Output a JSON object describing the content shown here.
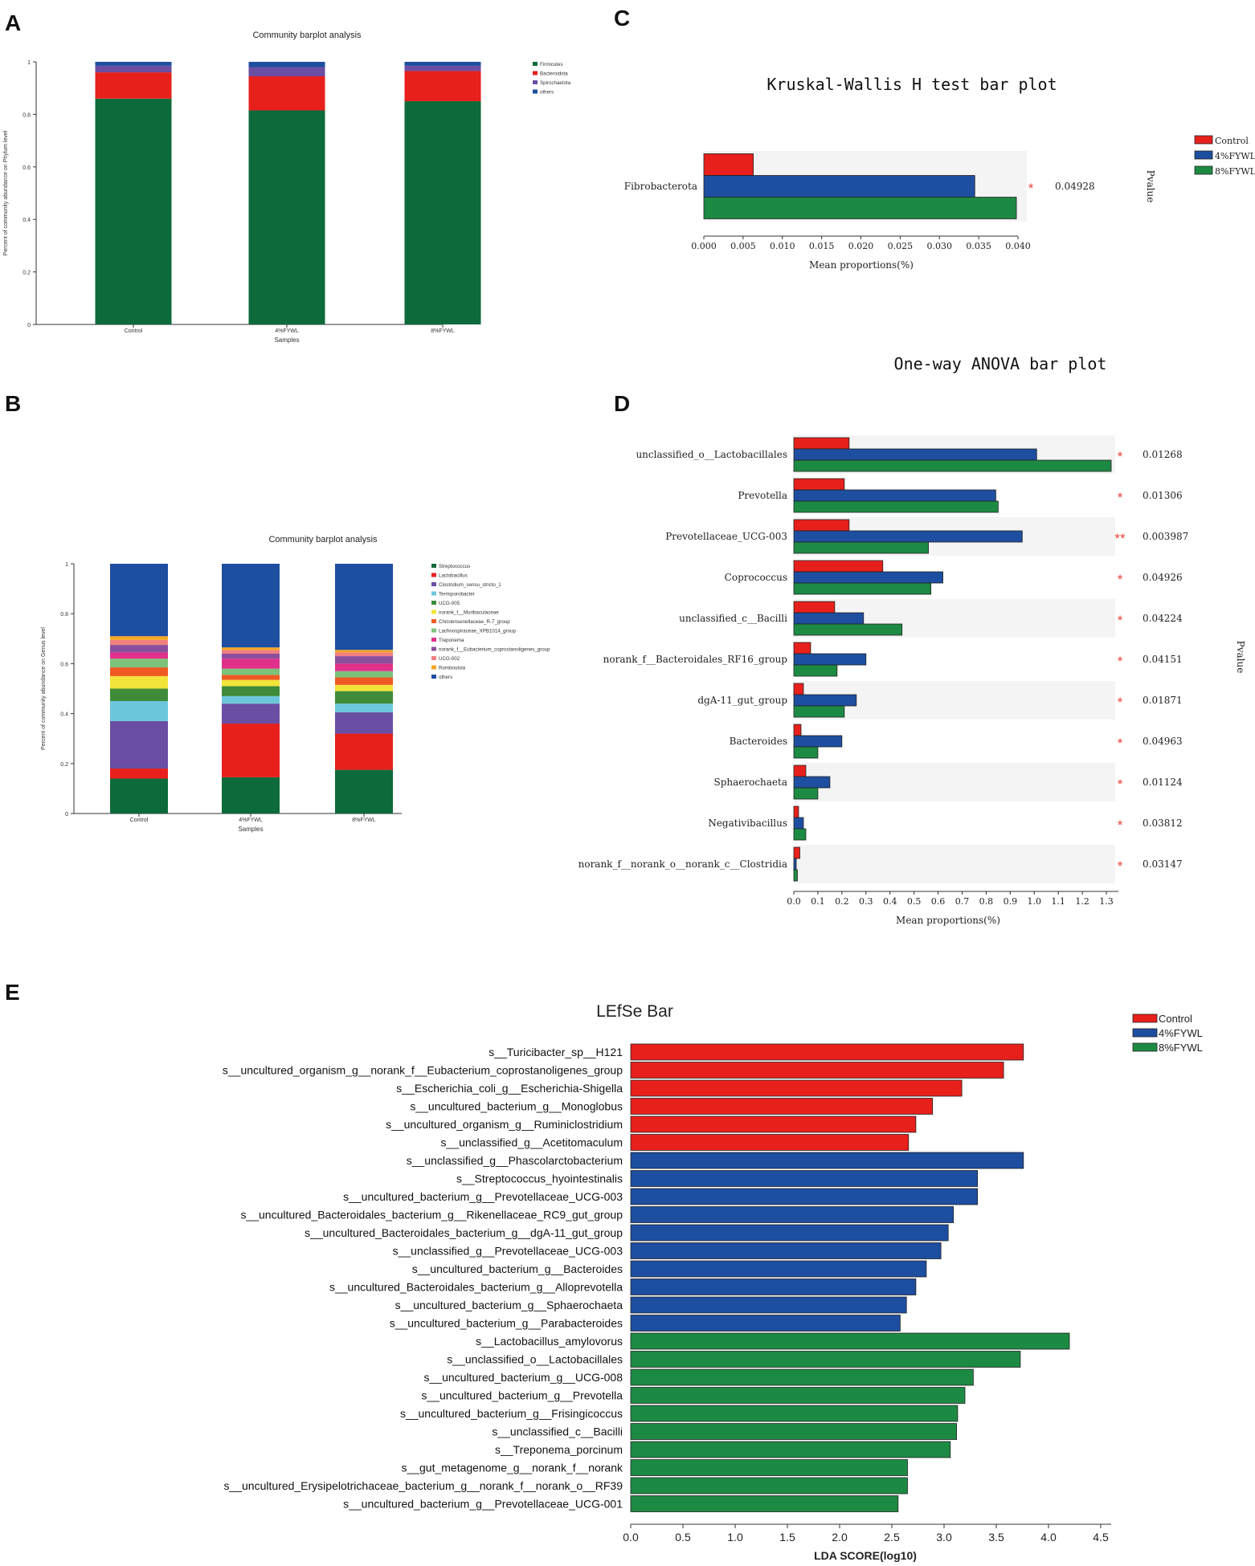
{
  "panels": {
    "A": "A",
    "B": "B",
    "C": "C",
    "D": "D",
    "E": "E"
  },
  "chart_data": [
    {
      "id": "A",
      "type": "bar",
      "stacked": true,
      "title": "Community barplot analysis",
      "xlabel": "Samples",
      "ylabel": "Percent of community abundance on Phylum level",
      "ylim": [
        0,
        1
      ],
      "yticks": [
        "0",
        "0.2",
        "0.4",
        "0.6",
        "0.8",
        "1"
      ],
      "categories": [
        "Control",
        "4%FYWL",
        "8%FYWL"
      ],
      "legend_position": "top-right",
      "series": [
        {
          "name": "Firmicutes",
          "color": "#0d6a3a",
          "values": [
            0.86,
            0.815,
            0.85
          ]
        },
        {
          "name": "Bacteroidota",
          "color": "#e8201c",
          "values": [
            0.1,
            0.13,
            0.115
          ]
        },
        {
          "name": "Spirochaetota",
          "color": "#6a4ea3",
          "values": [
            0.025,
            0.035,
            0.02
          ]
        },
        {
          "name": "others",
          "color": "#1d4ea0",
          "values": [
            0.015,
            0.02,
            0.015
          ]
        }
      ]
    },
    {
      "id": "B",
      "type": "bar",
      "stacked": true,
      "title": "Community barplot analysis",
      "xlabel": "Samples",
      "ylabel": "Percent of community abundance on Genus level",
      "ylim": [
        0,
        1
      ],
      "yticks": [
        "0",
        "0.2",
        "0.4",
        "0.6",
        "0.8",
        "1"
      ],
      "categories": [
        "Control",
        "4%FYWL",
        "8%FYWL"
      ],
      "legend_position": "top-right",
      "series": [
        {
          "name": "Streptococcus",
          "color": "#0d6a3a",
          "values": [
            0.14,
            0.145,
            0.175
          ]
        },
        {
          "name": "Lactobacillus",
          "color": "#e8201c",
          "values": [
            0.04,
            0.215,
            0.145
          ]
        },
        {
          "name": "Clostridium_sensu_stricto_1",
          "color": "#6a4ea3",
          "values": [
            0.19,
            0.08,
            0.085
          ]
        },
        {
          "name": "Terrisporobacter",
          "color": "#6cc7dc",
          "values": [
            0.08,
            0.03,
            0.035
          ]
        },
        {
          "name": "UCG-005",
          "color": "#3f8b3a",
          "values": [
            0.05,
            0.04,
            0.05
          ]
        },
        {
          "name": "norank_f__Muribaculaceae",
          "color": "#f2e43a",
          "values": [
            0.05,
            0.025,
            0.025
          ]
        },
        {
          "name": "Christensenellaceae_R-7_group",
          "color": "#ef5a24",
          "values": [
            0.035,
            0.02,
            0.03
          ]
        },
        {
          "name": "Lachnospiraceae_XPB1014_group",
          "color": "#7cc27a",
          "values": [
            0.035,
            0.025,
            0.025
          ]
        },
        {
          "name": "Treponema",
          "color": "#e0308a",
          "values": [
            0.025,
            0.04,
            0.03
          ]
        },
        {
          "name": "norank_f__Eubacterium_coprostanoligenes_group",
          "color": "#8b4f9e",
          "values": [
            0.03,
            0.02,
            0.03
          ]
        },
        {
          "name": "UCG-002",
          "color": "#f08080",
          "values": [
            0.02,
            0.015,
            0.015
          ]
        },
        {
          "name": "Romboutsia",
          "color": "#f5a623",
          "values": [
            0.015,
            0.01,
            0.01
          ]
        },
        {
          "name": "others",
          "color": "#1d4ea0",
          "values": [
            0.29,
            0.335,
            0.345
          ]
        }
      ]
    },
    {
      "id": "C",
      "type": "bar",
      "orientation": "horizontal",
      "title": "Kruskal-Wallis H test bar plot",
      "xlabel": "Mean proportions(%)",
      "ylabel": "",
      "pvalue_label": "Pvalue",
      "xlim": [
        0,
        0.04
      ],
      "xticks": [
        "0.000",
        "0.005",
        "0.010",
        "0.015",
        "0.020",
        "0.025",
        "0.030",
        "0.035",
        "0.040"
      ],
      "legend_position": "top-right",
      "series_names": [
        "Control",
        "4%FYWL",
        "8%FYWL"
      ],
      "colors": [
        "#e8201c",
        "#1d4ea0",
        "#1d8a43"
      ],
      "categories": [
        "Fibrobacterota"
      ],
      "values": [
        [
          0.0063,
          0.0345,
          0.0398
        ]
      ],
      "significance": [
        "*"
      ],
      "pvalues": [
        "0.04928"
      ]
    },
    {
      "id": "D",
      "type": "bar",
      "orientation": "horizontal",
      "title": "One-way ANOVA bar plot",
      "xlabel": "Mean proportions(%)",
      "ylabel": "",
      "pvalue_label": "Pvalue",
      "xlim": [
        0,
        1.35
      ],
      "xticks": [
        "0.0",
        "0.1",
        "0.2",
        "0.3",
        "0.4",
        "0.5",
        "0.6",
        "0.7",
        "0.8",
        "0.9",
        "1.0",
        "1.1",
        "1.2",
        "1.3"
      ],
      "series_names": [
        "Control",
        "4%FYWL",
        "8%FYWL"
      ],
      "colors": [
        "#e8201c",
        "#1d4ea0",
        "#1d8a43"
      ],
      "categories": [
        "unclassified_o__Lactobacillales",
        "Prevotella",
        "Prevotellaceae_UCG-003",
        "Coprococcus",
        "unclassified_c__Bacilli",
        "norank_f__Bacteroidales_RF16_group",
        "dgA-11_gut_group",
        "Bacteroides",
        "Sphaerochaeta",
        "Negativibacillus",
        "norank_f__norank_o__norank_c__Clostridia"
      ],
      "values": [
        [
          0.23,
          1.01,
          1.32
        ],
        [
          0.21,
          0.84,
          0.85
        ],
        [
          0.23,
          0.95,
          0.56
        ],
        [
          0.37,
          0.62,
          0.57
        ],
        [
          0.17,
          0.29,
          0.45
        ],
        [
          0.07,
          0.3,
          0.18
        ],
        [
          0.04,
          0.26,
          0.21
        ],
        [
          0.03,
          0.2,
          0.1
        ],
        [
          0.05,
          0.15,
          0.1
        ],
        [
          0.02,
          0.04,
          0.05
        ],
        [
          0.025,
          0.01,
          0.015
        ]
      ],
      "significance": [
        "*",
        "*",
        "**",
        "*",
        "*",
        "*",
        "*",
        "*",
        "*",
        "*",
        "*"
      ],
      "pvalues": [
        "0.01268",
        "0.01306",
        "0.003987",
        "0.04926",
        "0.04224",
        "0.04151",
        "0.01871",
        "0.04963",
        "0.01124",
        "0.03812",
        "0.03147"
      ]
    },
    {
      "id": "E",
      "type": "bar",
      "orientation": "horizontal",
      "title": "LEfSe Bar",
      "xlabel": "LDA SCORE(log10)",
      "xlim": [
        0,
        4.6
      ],
      "xticks": [
        "0.0",
        "0.5",
        "1.0",
        "1.5",
        "2.0",
        "2.5",
        "3.0",
        "3.5",
        "4.0",
        "4.5"
      ],
      "legend_position": "top-right",
      "groups": [
        {
          "name": "Control",
          "color": "#e8201c"
        },
        {
          "name": "4%FYWL",
          "color": "#1d4ea0"
        },
        {
          "name": "8%FYWL",
          "color": "#1d8a43"
        }
      ],
      "bars": [
        {
          "label": "s__Turicibacter_sp__H121",
          "group": 0,
          "value": 3.76
        },
        {
          "label": "s__uncultured_organism_g__norank_f__Eubacterium_coprostanoligenes_group",
          "group": 0,
          "value": 3.57
        },
        {
          "label": "s__Escherichia_coli_g__Escherichia-Shigella",
          "group": 0,
          "value": 3.17
        },
        {
          "label": "s__uncultured_bacterium_g__Monoglobus",
          "group": 0,
          "value": 2.89
        },
        {
          "label": "s__uncultured_organism_g__Ruminiclostridium",
          "group": 0,
          "value": 2.73
        },
        {
          "label": "s__unclassified_g__Acetitomaculum",
          "group": 0,
          "value": 2.66
        },
        {
          "label": "s__unclassified_g__Phascolarctobacterium",
          "group": 1,
          "value": 3.76
        },
        {
          "label": "s__Streptococcus_hyointestinalis",
          "group": 1,
          "value": 3.32
        },
        {
          "label": "s__uncultured_bacterium_g__Prevotellaceae_UCG-003",
          "group": 1,
          "value": 3.32
        },
        {
          "label": "s__uncultured_Bacteroidales_bacterium_g__Rikenellaceae_RC9_gut_group",
          "group": 1,
          "value": 3.09
        },
        {
          "label": "s__uncultured_Bacteroidales_bacterium_g__dgA-11_gut_group",
          "group": 1,
          "value": 3.04
        },
        {
          "label": "s__unclassified_g__Prevotellaceae_UCG-003",
          "group": 1,
          "value": 2.97
        },
        {
          "label": "s__uncultured_bacterium_g__Bacteroides",
          "group": 1,
          "value": 2.83
        },
        {
          "label": "s__uncultured_Bacteroidales_bacterium_g__Alloprevotella",
          "group": 1,
          "value": 2.73
        },
        {
          "label": "s__uncultured_bacterium_g__Sphaerochaeta",
          "group": 1,
          "value": 2.64
        },
        {
          "label": "s__uncultured_bacterium_g__Parabacteroides",
          "group": 1,
          "value": 2.58
        },
        {
          "label": "s__Lactobacillus_amylovorus",
          "group": 2,
          "value": 4.2
        },
        {
          "label": "s__unclassified_o__Lactobacillales",
          "group": 2,
          "value": 3.73
        },
        {
          "label": "s__uncultured_bacterium_g__UCG-008",
          "group": 2,
          "value": 3.28
        },
        {
          "label": "s__uncultured_bacterium_g__Prevotella",
          "group": 2,
          "value": 3.2
        },
        {
          "label": "s__uncultured_bacterium_g__Frisingicoccus",
          "group": 2,
          "value": 3.13
        },
        {
          "label": "s__unclassified_c__Bacilli",
          "group": 2,
          "value": 3.12
        },
        {
          "label": "s__Treponema_porcinum",
          "group": 2,
          "value": 3.06
        },
        {
          "label": "s__gut_metagenome_g__norank_f__norank",
          "group": 2,
          "value": 2.65
        },
        {
          "label": "s__uncultured_Erysipelotrichaceae_bacterium_g__norank_f__norank_o__RF39",
          "group": 2,
          "value": 2.65
        },
        {
          "label": "s__uncultured_bacterium_g__Prevotellaceae_UCG-001",
          "group": 2,
          "value": 2.56
        }
      ]
    }
  ]
}
